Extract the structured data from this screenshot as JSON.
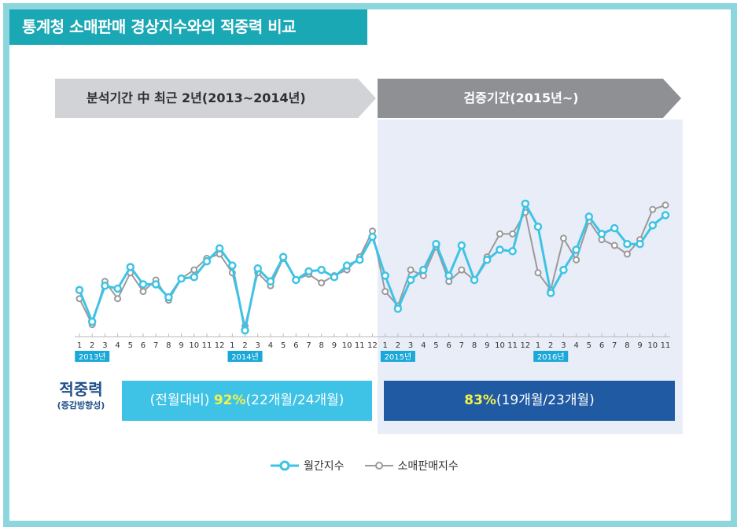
{
  "title": "통계청 소매판매 경상지수와의 적중력 비교",
  "periods": {
    "analysis_label": "분석기간 中 최근 2년(2013~2014년)",
    "validation_label": "검증기간(2015년~)"
  },
  "accuracy": {
    "title": "적중력",
    "subtitle": "(증감방향성)",
    "analysis_prefix": "(전월대비) ",
    "analysis_pct": "92%",
    "analysis_detail": "(22개월/24개월)",
    "validation_pct": "83%",
    "validation_detail": "(19개월/23개월)"
  },
  "legend": {
    "monthly": "월간지수",
    "retail": "소매판매지수"
  },
  "colors": {
    "monthly": "#3ec3e6",
    "retail": "#9a9a9a",
    "title_tab": "#1aa8b4",
    "frame": "#8dd6dd",
    "year_badge": "#1aa8d8",
    "validation_box": "#1f5aa3",
    "analysis_box": "#3ec3e6"
  },
  "chart_data": {
    "type": "line",
    "title": "",
    "xlabel": "",
    "ylabel": "",
    "ylim": [
      0,
      100
    ],
    "categories": [
      "1",
      "2",
      "3",
      "4",
      "5",
      "6",
      "7",
      "8",
      "9",
      "10",
      "11",
      "12",
      "1",
      "2",
      "3",
      "4",
      "5",
      "6",
      "7",
      "8",
      "9",
      "10",
      "11",
      "12",
      "1",
      "2",
      "3",
      "4",
      "5",
      "6",
      "7",
      "8",
      "9",
      "10",
      "11",
      "12",
      "1",
      "2",
      "3",
      "4",
      "5",
      "6",
      "7",
      "8",
      "9",
      "10",
      "11"
    ],
    "year_labels": [
      {
        "label": "2013년",
        "index": 1
      },
      {
        "label": "2014년",
        "index": 13
      },
      {
        "label": "2015년",
        "index": 25
      },
      {
        "label": "2016년",
        "index": 37
      }
    ],
    "series": [
      {
        "name": "월간지수",
        "values": [
          28,
          6,
          31,
          29,
          44,
          32,
          32,
          23,
          36,
          37,
          48,
          57,
          45,
          0,
          43,
          34,
          51,
          35,
          41,
          42,
          37,
          45,
          49,
          65,
          38,
          15,
          35,
          42,
          60,
          38,
          59,
          35,
          49,
          56,
          55,
          88,
          72,
          26,
          42,
          56,
          79,
          67,
          71,
          60,
          60,
          73,
          80
        ]
      },
      {
        "name": "소매판매지수",
        "values": [
          22,
          4,
          34,
          22,
          40,
          27,
          35,
          21,
          36,
          42,
          50,
          53,
          40,
          3,
          40,
          31,
          50,
          35,
          39,
          33,
          38,
          42,
          51,
          69,
          27,
          17,
          42,
          38,
          58,
          34,
          42,
          35,
          51,
          67,
          67,
          82,
          40,
          28,
          64,
          49,
          76,
          63,
          59,
          53,
          63,
          84,
          87
        ]
      }
    ]
  }
}
